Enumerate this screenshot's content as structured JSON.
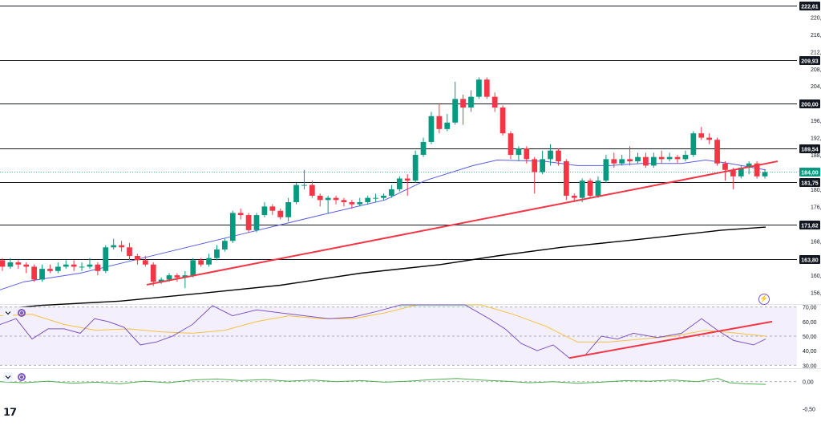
{
  "chart_data": {
    "type": "candlestick",
    "main": {
      "y_ticks": [
        "220,00",
        "216,00",
        "212,00",
        "208,00",
        "204,00",
        "196,00",
        "192,00",
        "188,00",
        "180,00",
        "176,00",
        "168,00",
        "160,00",
        "156,00"
      ],
      "ylim": [
        153.5,
        224
      ],
      "levels": [
        {
          "value": 222.61,
          "label": "222,61"
        },
        {
          "value": 209.93,
          "label": "209,93"
        },
        {
          "value": 200.0,
          "label": "200,00"
        },
        {
          "value": 189.54,
          "label": "189,54"
        },
        {
          "value": 181.75,
          "label": "181,75"
        },
        {
          "value": 171.82,
          "label": "171,82"
        },
        {
          "value": 163.8,
          "label": "163,80"
        }
      ],
      "last_price": {
        "value": 184.0,
        "label": "184,00"
      },
      "candles": [
        [
          163.5,
          162.0,
          164.0,
          161.0
        ],
        [
          162.0,
          163.0,
          164.0,
          161.5
        ],
        [
          163.0,
          162.5,
          163.5,
          161.5
        ],
        [
          162.5,
          162.0,
          163.0,
          160.5
        ],
        [
          162.0,
          159.0,
          162.5,
          158.5
        ],
        [
          159.0,
          161.5,
          162.5,
          158.5
        ],
        [
          161.5,
          161.0,
          162.5,
          160.5
        ],
        [
          161.0,
          162.0,
          163.0,
          160.5
        ],
        [
          162.0,
          162.5,
          163.5,
          161.5
        ],
        [
          162.5,
          162.0,
          163.5,
          161.0
        ],
        [
          162.0,
          162.0,
          163.0,
          161.0
        ],
        [
          162.0,
          162.5,
          164.0,
          161.5
        ],
        [
          162.5,
          161.0,
          163.0,
          160.0
        ],
        [
          161.0,
          166.5,
          167.0,
          160.5
        ],
        [
          166.5,
          167.0,
          168.5,
          166.0
        ],
        [
          167.0,
          166.5,
          168.0,
          165.5
        ],
        [
          166.5,
          164.5,
          167.5,
          163.5
        ],
        [
          164.5,
          163.5,
          165.0,
          162.5
        ],
        [
          163.5,
          162.5,
          164.5,
          162.0
        ],
        [
          162.5,
          158.5,
          163.0,
          157.5
        ],
        [
          158.5,
          159.0,
          159.5,
          158.0
        ],
        [
          159.0,
          160.0,
          160.5,
          158.5
        ],
        [
          160.0,
          159.5,
          160.5,
          158.5
        ],
        [
          159.5,
          160.0,
          161.0,
          157.0
        ],
        [
          160.0,
          163.5,
          164.0,
          159.5
        ],
        [
          163.5,
          162.5,
          164.0,
          162.0
        ],
        [
          162.5,
          164.0,
          165.0,
          162.0
        ],
        [
          164.0,
          166.0,
          167.0,
          163.5
        ],
        [
          166.0,
          168.0,
          168.5,
          165.5
        ],
        [
          168.0,
          174.5,
          175.0,
          167.5
        ],
        [
          174.5,
          174.0,
          175.5,
          173.0
        ],
        [
          174.0,
          170.5,
          174.5,
          170.0
        ],
        [
          170.5,
          174.0,
          174.5,
          170.0
        ],
        [
          174.0,
          176.0,
          177.0,
          173.5
        ],
        [
          176.0,
          175.0,
          176.5,
          174.0
        ],
        [
          175.0,
          173.5,
          175.5,
          173.0
        ],
        [
          173.5,
          177.0,
          178.0,
          172.5
        ],
        [
          177.0,
          181.0,
          181.5,
          176.5
        ],
        [
          181.0,
          181.0,
          184.5,
          180.0
        ],
        [
          181.0,
          178.5,
          182.0,
          178.0
        ],
        [
          178.5,
          177.5,
          179.0,
          176.0
        ],
        [
          177.5,
          178.0,
          178.5,
          174.5
        ],
        [
          178.0,
          177.5,
          178.5,
          176.5
        ],
        [
          177.5,
          177.0,
          178.0,
          176.0
        ],
        [
          177.0,
          176.5,
          177.5,
          175.5
        ],
        [
          176.5,
          177.0,
          178.0,
          176.0
        ],
        [
          177.0,
          178.0,
          178.5,
          176.5
        ],
        [
          178.0,
          178.0,
          179.0,
          177.0
        ],
        [
          178.0,
          178.5,
          179.0,
          177.5
        ],
        [
          178.5,
          180.0,
          181.0,
          178.0
        ],
        [
          180.0,
          182.5,
          183.0,
          179.5
        ],
        [
          182.5,
          182.0,
          183.5,
          178.5
        ],
        [
          182.0,
          188.0,
          189.0,
          181.5
        ],
        [
          188.0,
          191.0,
          192.0,
          187.5
        ],
        [
          191.0,
          197.0,
          198.0,
          190.5
        ],
        [
          197.0,
          194.0,
          200.0,
          193.0
        ],
        [
          194.0,
          195.5,
          197.5,
          193.5
        ],
        [
          195.5,
          201.0,
          205.0,
          195.0
        ],
        [
          201.0,
          199.0,
          202.0,
          195.0
        ],
        [
          199.0,
          201.5,
          203.0,
          198.0
        ],
        [
          201.5,
          205.5,
          206.0,
          201.0
        ],
        [
          205.5,
          201.5,
          206.0,
          201.0
        ],
        [
          201.5,
          199.0,
          202.5,
          198.0
        ],
        [
          199.0,
          193.0,
          199.5,
          192.5
        ],
        [
          193.0,
          188.0,
          193.5,
          187.0
        ],
        [
          188.0,
          189.5,
          190.0,
          186.5
        ],
        [
          189.5,
          187.0,
          190.0,
          186.0
        ],
        [
          187.0,
          184.0,
          187.5,
          179.0
        ],
        [
          184.0,
          187.0,
          189.0,
          183.5
        ],
        [
          187.0,
          189.0,
          190.5,
          185.5
        ],
        [
          189.0,
          186.5,
          189.5,
          185.5
        ],
        [
          186.5,
          178.5,
          187.0,
          177.5
        ],
        [
          178.5,
          178.0,
          179.0,
          177.0
        ],
        [
          178.0,
          182.0,
          182.5,
          177.0
        ],
        [
          182.0,
          178.5,
          182.5,
          178.0
        ],
        [
          178.5,
          182.0,
          183.0,
          178.0
        ],
        [
          182.0,
          187.0,
          188.0,
          181.5
        ],
        [
          187.0,
          186.0,
          188.5,
          185.0
        ],
        [
          186.0,
          187.0,
          188.0,
          185.5
        ],
        [
          187.0,
          186.5,
          190.0,
          185.5
        ],
        [
          186.5,
          187.5,
          188.5,
          186.0
        ],
        [
          187.5,
          185.5,
          188.5,
          185.0
        ],
        [
          185.5,
          187.5,
          188.5,
          185.0
        ],
        [
          187.5,
          187.0,
          189.0,
          186.0
        ],
        [
          187.0,
          187.5,
          188.5,
          186.5
        ],
        [
          187.5,
          187.0,
          188.0,
          186.0
        ],
        [
          187.0,
          188.0,
          189.0,
          186.5
        ],
        [
          188.0,
          193.0,
          193.5,
          187.5
        ],
        [
          193.0,
          192.0,
          194.5,
          191.5
        ],
        [
          192.0,
          191.5,
          193.0,
          190.5
        ],
        [
          191.5,
          186.0,
          192.0,
          185.5
        ],
        [
          186.0,
          184.5,
          186.5,
          182.0
        ],
        [
          184.5,
          183.0,
          185.0,
          180.0
        ],
        [
          183.0,
          185.0,
          185.5,
          182.5
        ],
        [
          185.0,
          186.0,
          186.5,
          183.5
        ],
        [
          186.0,
          183.0,
          186.5,
          182.5
        ],
        [
          183.0,
          184.0,
          184.5,
          182.5
        ]
      ],
      "ma50": [
        [
          -2,
          156.5
        ],
        [
          30,
          158.5
        ],
        [
          100,
          160.5
        ],
        [
          200,
          165
        ],
        [
          300,
          169.5
        ],
        [
          400,
          174
        ],
        [
          480,
          177.5
        ],
        [
          530,
          182
        ],
        [
          590,
          185.5
        ],
        [
          620,
          186.8
        ],
        [
          680,
          186.5
        ],
        [
          720,
          185.5
        ],
        [
          760,
          185.5
        ],
        [
          800,
          186
        ],
        [
          850,
          186
        ],
        [
          880,
          186.8
        ],
        [
          910,
          186
        ],
        [
          955,
          184.5
        ]
      ],
      "ma200": [
        [
          -2,
          152
        ],
        [
          50,
          153
        ],
        [
          150,
          154
        ],
        [
          250,
          155.8
        ],
        [
          350,
          157.7
        ],
        [
          450,
          160.5
        ],
        [
          550,
          162.5
        ],
        [
          620,
          164.5
        ],
        [
          700,
          166.5
        ],
        [
          800,
          168.4
        ],
        [
          900,
          170.5
        ],
        [
          955,
          171.2
        ]
      ],
      "trendline": {
        "from": [
          183,
          157.8
        ],
        "to": [
          970,
          186.5
        ]
      }
    },
    "rsi": {
      "y_ticks": [
        "70,00",
        "60,00",
        "50,00",
        "40,00",
        "30,00"
      ],
      "ylim": [
        28.5,
        71.5
      ],
      "band": [
        30,
        70
      ],
      "line": [
        [
          0,
          58
        ],
        [
          20,
          62
        ],
        [
          40,
          48
        ],
        [
          60,
          55
        ],
        [
          80,
          55
        ],
        [
          100,
          52
        ],
        [
          118,
          62
        ],
        [
          135,
          60
        ],
        [
          155,
          56
        ],
        [
          175,
          44
        ],
        [
          195,
          46
        ],
        [
          215,
          50
        ],
        [
          240,
          58
        ],
        [
          265,
          71
        ],
        [
          290,
          64
        ],
        [
          320,
          68
        ],
        [
          350,
          66
        ],
        [
          380,
          64
        ],
        [
          410,
          62
        ],
        [
          440,
          63
        ],
        [
          470,
          67
        ],
        [
          500,
          74
        ],
        [
          540,
          75
        ],
        [
          580,
          76
        ],
        [
          610,
          62
        ],
        [
          630,
          55
        ],
        [
          650,
          45
        ],
        [
          670,
          40
        ],
        [
          690,
          44
        ],
        [
          710,
          35
        ],
        [
          730,
          37
        ],
        [
          750,
          50
        ],
        [
          770,
          48
        ],
        [
          790,
          52
        ],
        [
          820,
          49
        ],
        [
          850,
          52
        ],
        [
          875,
          62
        ],
        [
          895,
          54
        ],
        [
          915,
          47
        ],
        [
          940,
          44
        ],
        [
          955,
          48
        ]
      ],
      "signal": [
        [
          0,
          64
        ],
        [
          40,
          65
        ],
        [
          80,
          58
        ],
        [
          120,
          54
        ],
        [
          160,
          55
        ],
        [
          200,
          53
        ],
        [
          240,
          52
        ],
        [
          280,
          54
        ],
        [
          320,
          60
        ],
        [
          360,
          64
        ],
        [
          400,
          62
        ],
        [
          440,
          62
        ],
        [
          480,
          66
        ],
        [
          520,
          72
        ],
        [
          560,
          75
        ],
        [
          600,
          73
        ],
        [
          640,
          65
        ],
        [
          680,
          57
        ],
        [
          720,
          46
        ],
        [
          760,
          46
        ],
        [
          800,
          48
        ],
        [
          840,
          50
        ],
        [
          880,
          54
        ],
        [
          920,
          52
        ],
        [
          955,
          50
        ]
      ],
      "trendline": {
        "from": [
          710,
          35
        ],
        "to": [
          963,
          60
        ]
      }
    },
    "osc": {
      "y_ticks": [
        "0,00",
        "-0,50"
      ],
      "ylim": [
        -0.72,
        0.22
      ],
      "line": [
        [
          0,
          0
        ],
        [
          30,
          -0.02
        ],
        [
          60,
          0.01
        ],
        [
          90,
          -0.03
        ],
        [
          120,
          -0.01
        ],
        [
          150,
          -0.04
        ],
        [
          180,
          0.01
        ],
        [
          210,
          -0.02
        ],
        [
          240,
          0.03
        ],
        [
          270,
          0.05
        ],
        [
          300,
          0.02
        ],
        [
          330,
          0.04
        ],
        [
          360,
          0.01
        ],
        [
          390,
          0.03
        ],
        [
          420,
          0.0
        ],
        [
          450,
          0.02
        ],
        [
          480,
          -0.01
        ],
        [
          510,
          0.01
        ],
        [
          540,
          0.04
        ],
        [
          570,
          0.06
        ],
        [
          600,
          0.03
        ],
        [
          630,
          0.01
        ],
        [
          660,
          -0.02
        ],
        [
          690,
          0.0
        ],
        [
          720,
          -0.03
        ],
        [
          750,
          -0.01
        ],
        [
          780,
          0.02
        ],
        [
          810,
          0.01
        ],
        [
          840,
          0.03
        ],
        [
          870,
          0.0
        ],
        [
          895,
          0.06
        ],
        [
          910,
          -0.02
        ],
        [
          930,
          -0.04
        ],
        [
          955,
          -0.05
        ]
      ]
    }
  }
}
